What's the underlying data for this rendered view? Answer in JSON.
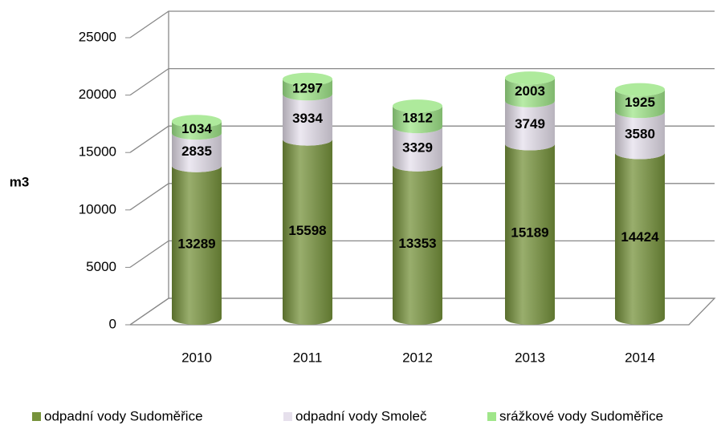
{
  "chart_data": {
    "type": "bar",
    "stacked": true,
    "style": "3d-cylinder",
    "y_label": "m3",
    "categories": [
      "2010",
      "2011",
      "2012",
      "2013",
      "2014"
    ],
    "series": [
      {
        "name": "odpadní vody Sudoměřice",
        "color": "#77933c",
        "values": [
          13289,
          15598,
          13353,
          15189,
          14424
        ]
      },
      {
        "name": "odpadní vody Smoleč",
        "color": "#e6e0ec",
        "values": [
          2835,
          3934,
          3329,
          3749,
          3580
        ]
      },
      {
        "name": "srážkové vody Sudoměřice",
        "color": "#a0e68a",
        "values": [
          1034,
          1297,
          1812,
          2003,
          1925
        ]
      }
    ],
    "ylim": [
      0,
      25000
    ],
    "yticks": [
      0,
      5000,
      10000,
      15000,
      20000,
      25000
    ],
    "grid": true,
    "legend": "bottom"
  }
}
